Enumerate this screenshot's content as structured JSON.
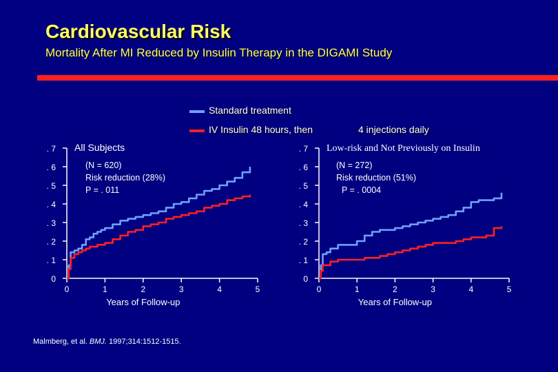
{
  "slide": {
    "title": "Cardiovascular Risk",
    "subtitle": "Mortality After MI Reduced by Insulin Therapy in the DIGAMI Study"
  },
  "legend": {
    "standard_label": "Standard treatment",
    "insulin_label": "IV Insulin 48 hours, then",
    "insulin_label_cont": "4 injections daily"
  },
  "colors": {
    "background": "#000080",
    "title": "#ffff66",
    "rule": "#ff2020",
    "standard": "#6fa0ff",
    "insulin": "#ff2020",
    "text": "#ffffff"
  },
  "citation": {
    "prefix": "Malmberg, et al. ",
    "journal": "BMJ.",
    "details": " 1997;314:1512-1515."
  },
  "chart_data": [
    {
      "type": "line",
      "title": "All Subjects",
      "annotation_lines": [
        "(N = 620)",
        "Risk reduction (28%)",
        "P = . 011"
      ],
      "xlabel": "Years of Follow-up",
      "ylabel": "",
      "xlim": [
        0,
        5
      ],
      "ylim": [
        0,
        0.7
      ],
      "x_ticks": [
        0,
        1,
        2,
        3,
        4,
        5
      ],
      "x_tick_labels": [
        "0",
        "1",
        "2",
        "3",
        "4",
        "5"
      ],
      "y_ticks": [
        0,
        0.1,
        0.2,
        0.3,
        0.4,
        0.5,
        0.6,
        0.7
      ],
      "y_tick_labels": [
        "0",
        ". 1",
        ". 2",
        ". 3",
        ". 4",
        ". 5",
        ". 6",
        ". 7"
      ],
      "series": [
        {
          "name": "Standard treatment",
          "color": "#6fa0ff",
          "x": [
            0,
            0.05,
            0.1,
            0.2,
            0.3,
            0.4,
            0.5,
            0.6,
            0.7,
            0.8,
            0.9,
            1.0,
            1.2,
            1.4,
            1.6,
            1.8,
            2.0,
            2.2,
            2.4,
            2.6,
            2.8,
            3.0,
            3.2,
            3.4,
            3.6,
            3.8,
            4.0,
            4.2,
            4.4,
            4.6,
            4.8
          ],
          "y": [
            0,
            0.07,
            0.14,
            0.15,
            0.16,
            0.18,
            0.21,
            0.22,
            0.24,
            0.25,
            0.26,
            0.27,
            0.29,
            0.31,
            0.32,
            0.33,
            0.34,
            0.35,
            0.36,
            0.38,
            0.4,
            0.41,
            0.43,
            0.45,
            0.47,
            0.48,
            0.5,
            0.52,
            0.54,
            0.57,
            0.6
          ]
        },
        {
          "name": "IV Insulin 48 hours, then 4 injections daily",
          "color": "#ff2020",
          "x": [
            0,
            0.05,
            0.1,
            0.2,
            0.3,
            0.4,
            0.5,
            0.6,
            0.8,
            1.0,
            1.2,
            1.4,
            1.6,
            1.8,
            2.0,
            2.2,
            2.4,
            2.6,
            2.8,
            3.0,
            3.2,
            3.4,
            3.6,
            3.8,
            4.0,
            4.2,
            4.4,
            4.6,
            4.8
          ],
          "y": [
            0,
            0.05,
            0.11,
            0.13,
            0.14,
            0.15,
            0.16,
            0.17,
            0.18,
            0.19,
            0.21,
            0.23,
            0.25,
            0.26,
            0.28,
            0.29,
            0.3,
            0.32,
            0.33,
            0.34,
            0.35,
            0.36,
            0.38,
            0.39,
            0.4,
            0.42,
            0.43,
            0.44,
            0.45
          ]
        }
      ]
    },
    {
      "type": "line",
      "title": "Low-risk and Not Previously on Insulin",
      "annotation_lines": [
        "(N = 272)",
        "Risk reduction (51%)",
        "P = . 0004"
      ],
      "xlabel": "Years of Follow-up",
      "ylabel": "",
      "xlim": [
        0,
        5
      ],
      "ylim": [
        0,
        0.7
      ],
      "x_ticks": [
        0,
        1,
        2,
        3,
        4,
        5
      ],
      "x_tick_labels": [
        "0",
        "1",
        "2",
        "3",
        "4",
        "5"
      ],
      "y_ticks": [
        0,
        0.1,
        0.2,
        0.3,
        0.4,
        0.5,
        0.6,
        0.7
      ],
      "y_tick_labels": [
        "0",
        ". 1",
        ". 2",
        ". 3",
        ". 4",
        ". 5",
        ". 6",
        ". 7"
      ],
      "series": [
        {
          "name": "Standard treatment",
          "color": "#6fa0ff",
          "x": [
            0,
            0.05,
            0.1,
            0.2,
            0.3,
            0.5,
            0.7,
            0.9,
            1.0,
            1.2,
            1.4,
            1.6,
            1.8,
            2.0,
            2.2,
            2.4,
            2.6,
            2.8,
            3.0,
            3.2,
            3.4,
            3.6,
            3.8,
            4.0,
            4.2,
            4.4,
            4.6,
            4.8
          ],
          "y": [
            0,
            0.07,
            0.13,
            0.14,
            0.16,
            0.18,
            0.18,
            0.18,
            0.2,
            0.23,
            0.25,
            0.26,
            0.26,
            0.27,
            0.28,
            0.29,
            0.3,
            0.31,
            0.32,
            0.33,
            0.34,
            0.36,
            0.38,
            0.41,
            0.42,
            0.42,
            0.43,
            0.46
          ]
        },
        {
          "name": "IV Insulin 48 hours, then 4 injections daily",
          "color": "#ff2020",
          "x": [
            0,
            0.05,
            0.1,
            0.3,
            0.5,
            0.7,
            1.0,
            1.2,
            1.4,
            1.6,
            1.8,
            2.0,
            2.2,
            2.4,
            2.6,
            2.8,
            3.0,
            3.2,
            3.4,
            3.6,
            3.8,
            4.0,
            4.2,
            4.4,
            4.6,
            4.8
          ],
          "y": [
            0,
            0.04,
            0.07,
            0.09,
            0.1,
            0.1,
            0.1,
            0.11,
            0.11,
            0.12,
            0.13,
            0.14,
            0.15,
            0.16,
            0.17,
            0.18,
            0.19,
            0.19,
            0.19,
            0.2,
            0.21,
            0.22,
            0.22,
            0.23,
            0.27,
            0.28
          ]
        }
      ]
    }
  ]
}
